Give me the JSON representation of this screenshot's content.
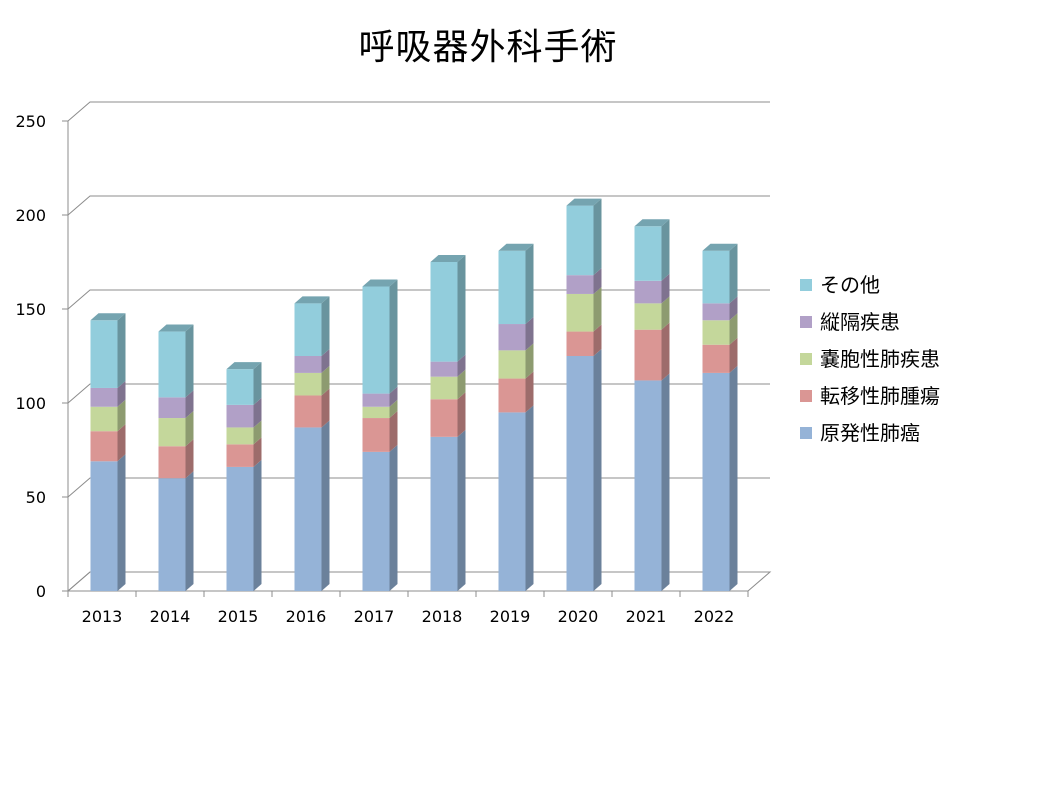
{
  "chart_data": {
    "type": "bar",
    "stacked": true,
    "three_d": true,
    "title": "呼吸器外科手術",
    "categories": [
      "2013",
      "2014",
      "2015",
      "2016",
      "2017",
      "2018",
      "2019",
      "2020",
      "2021",
      "2022"
    ],
    "series": [
      {
        "name": "原発性肺癌",
        "color": "#95b3d7",
        "values": [
          69,
          60,
          66,
          87,
          74,
          82,
          95,
          125,
          112,
          116
        ]
      },
      {
        "name": "転移性肺腫瘍",
        "color": "#da9694",
        "values": [
          16,
          17,
          12,
          17,
          18,
          20,
          18,
          13,
          27,
          15
        ]
      },
      {
        "name": "嚢胞性肺疾患",
        "color": "#c4d79b",
        "values": [
          13,
          15,
          9,
          12,
          6,
          12,
          15,
          20,
          14,
          13
        ]
      },
      {
        "name": "縦隔疾患",
        "color": "#b1a0c7",
        "values": [
          10,
          11,
          12,
          9,
          7,
          8,
          14,
          10,
          12,
          9
        ]
      },
      {
        "name": "その他",
        "color": "#92cddc",
        "values": [
          36,
          35,
          19,
          28,
          57,
          53,
          39,
          37,
          29,
          28
        ]
      }
    ],
    "ylim": [
      0,
      250
    ],
    "yticks": [
      0,
      50,
      100,
      150,
      200,
      250
    ],
    "xlabel": "",
    "ylabel": "",
    "grid": true,
    "legend_position": "right"
  }
}
